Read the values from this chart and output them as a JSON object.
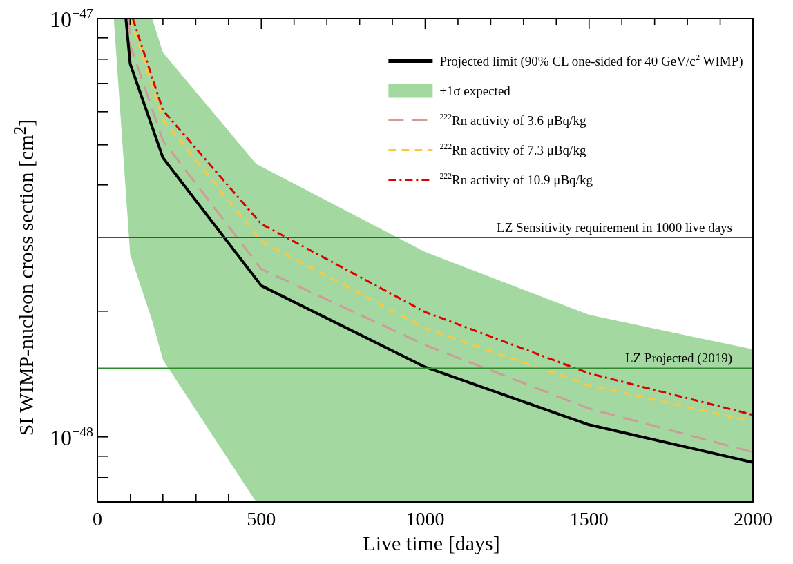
{
  "chart_data": {
    "type": "line",
    "xlabel": "Live time [days]",
    "ylabel": "SI WIMP-nucleon cross section [cm$^{2}$]",
    "log": "y",
    "grid": false,
    "legend": "top right",
    "xlim": [
      0,
      2000
    ],
    "xticks": [
      0,
      {
        "value": 100,
        "label": null
      },
      {
        "value": 200,
        "label": null
      },
      {
        "value": 300,
        "label": null
      },
      {
        "value": 400,
        "label": null
      },
      500,
      {
        "value": 600,
        "label": null
      },
      {
        "value": 700,
        "label": null
      },
      {
        "value": 800,
        "label": null
      },
      {
        "value": 900,
        "label": null
      },
      1000,
      {
        "value": 1100,
        "label": null
      },
      {
        "value": 1200,
        "label": null
      },
      {
        "value": 1300,
        "label": null
      },
      {
        "value": 1400,
        "label": null
      },
      1500,
      {
        "value": 1600,
        "label": null
      },
      {
        "value": 1700,
        "label": null
      },
      {
        "value": 1800,
        "label": null
      },
      {
        "value": 1900,
        "label": null
      },
      2000
    ],
    "ylim": [
      7e-49,
      1e-47
    ],
    "yticks": [
      {
        "value": 1e-47,
        "label": "10$^{−47}$"
      },
      {
        "value": 9e-48,
        "label": null
      },
      {
        "value": 8e-48,
        "label": null
      },
      {
        "value": 7e-48,
        "label": null
      },
      {
        "value": 6e-48,
        "label": null
      },
      {
        "value": 5e-48,
        "label": null
      },
      {
        "value": 4e-48,
        "label": null
      },
      {
        "value": 3e-48,
        "label": null
      },
      {
        "value": 2e-48,
        "label": null
      },
      {
        "value": 1e-48,
        "label": "10$^{−48}$"
      },
      {
        "value": 9e-49,
        "label": null
      },
      {
        "value": 8e-49,
        "label": null
      }
    ],
    "series": [
      {
        "name": "Projected limit (90% CL one-sided for 40 GeV/c$^{2}$ WIMP)",
        "color": "#000000",
        "line_style": "solid",
        "x": [
          87,
          100,
          200,
          500,
          1000,
          1500,
          2000
        ],
        "values": [
          1e-47,
          7.8e-48,
          4.65e-48,
          2.3e-48,
          1.47e-48,
          1.07e-48,
          8.7e-49
        ]
      },
      {
        "name": "±1σ expected",
        "type": "area",
        "color": "#a3d9a0",
        "x": [
          50,
          100,
          167,
          200,
          484,
          500,
          1000,
          1500,
          2000
        ],
        "values": [
          null,
          null,
          null,
          null,
          null,
          null,
          null,
          null,
          null
        ],
        "lower": [
          1e-47,
          2.73e-48,
          1.9e-48,
          1.53e-48,
          7e-49,
          7e-49,
          7e-49,
          7e-49,
          7e-49
        ],
        "upper": [
          1e-47,
          1e-47,
          1e-47,
          8.3e-48,
          4.5e-48,
          4.43e-48,
          2.77e-48,
          1.96e-48,
          1.62e-48
        ]
      },
      {
        "name": "$^{222}$Rn activity of 3.6 μBq/kg",
        "color": "#d09a9a",
        "line_style": "longdash",
        "x": [
          95,
          100,
          200,
          500,
          1000,
          1500,
          2000
        ],
        "values": [
          1e-47,
          8.66e-48,
          5.11e-48,
          2.52e-48,
          1.66e-48,
          1.17e-48,
          9.2e-49
        ]
      },
      {
        "name": "$^{222}$Rn activity of 7.3 μBq/kg",
        "color": "#ffc83a",
        "line_style": "dashed",
        "x": [
          101,
          200,
          500,
          1000,
          1500,
          2000
        ],
        "values": [
          1e-47,
          5.75e-48,
          2.94e-48,
          1.82e-48,
          1.33e-48,
          1.09e-48
        ]
      },
      {
        "name": "$^{222}$Rn activity of 10.9 μBq/kg",
        "color": "#dd0000",
        "line_style": "dashdot",
        "x": [
          108,
          200,
          500,
          1000,
          1500,
          2000
        ],
        "values": [
          1e-47,
          6.04e-48,
          3.23e-48,
          1.99e-48,
          1.42e-48,
          1.13e-48
        ]
      }
    ],
    "ref_lines": [
      {
        "axis": "y",
        "value": 3e-48,
        "label": "LZ Sensitivity requirement in 1000 live days",
        "color": "#b22222"
      },
      {
        "axis": "y",
        "value": 1.46e-48,
        "label": "LZ Projected (2019)",
        "color": "#2e8b2e"
      }
    ]
  }
}
